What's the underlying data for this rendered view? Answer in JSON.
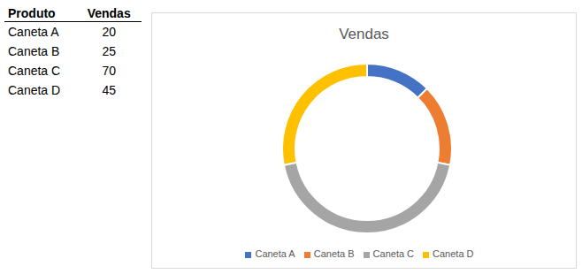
{
  "table": {
    "header": [
      "Produto",
      "Vendas"
    ],
    "rows": [
      [
        "Caneta A",
        20
      ],
      [
        "Caneta B",
        25
      ],
      [
        "Caneta C",
        70
      ],
      [
        "Caneta D",
        45
      ]
    ]
  },
  "chart_data": {
    "type": "donut",
    "title": "Vendas",
    "categories": [
      "Caneta A",
      "Caneta B",
      "Caneta C",
      "Caneta D"
    ],
    "values": [
      20,
      25,
      70,
      45
    ],
    "colors": [
      "#4472c4",
      "#ed7d31",
      "#a5a5a5",
      "#ffc000"
    ],
    "legend": "bottom"
  }
}
